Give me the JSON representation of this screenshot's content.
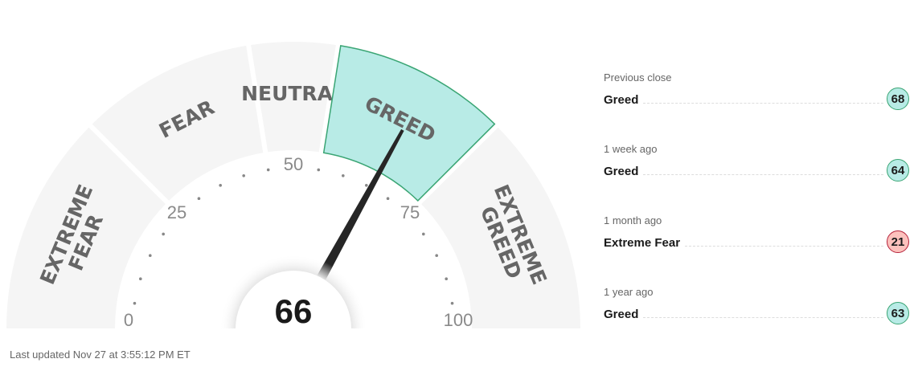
{
  "gauge": {
    "value": 66,
    "value_label": "66",
    "min": 0,
    "max": 100,
    "active_segment": 3,
    "segments": [
      {
        "lines": [
          "EXTREME",
          "FEAR"
        ],
        "from": 0,
        "to": 25
      },
      {
        "lines": [
          "FEAR"
        ],
        "from": 25,
        "to": 45
      },
      {
        "lines": [
          "NEUTRAL"
        ],
        "from": 45,
        "to": 55
      },
      {
        "lines": [
          "GREED"
        ],
        "from": 55,
        "to": 75
      },
      {
        "lines": [
          "EXTREME",
          "GREED"
        ],
        "from": 75,
        "to": 100
      }
    ],
    "tick_labels": [
      "0",
      "25",
      "50",
      "75",
      "100"
    ],
    "colors": {
      "segment": "#f5f5f5",
      "active_fill": "#b8ebe6",
      "active_stroke": "#3aa574",
      "needle": "#262626",
      "label": "#666666"
    }
  },
  "history": [
    {
      "label": "Previous close",
      "rating": "Greed",
      "value": "68",
      "fill": "#b8ebe6",
      "border": "#3aa574"
    },
    {
      "label": "1 week ago",
      "rating": "Greed",
      "value": "64",
      "fill": "#b8ebe6",
      "border": "#3aa574"
    },
    {
      "label": "1 month ago",
      "rating": "Extreme Fear",
      "value": "21",
      "fill": "#fcc1bd",
      "border": "#b5213a"
    },
    {
      "label": "1 year ago",
      "rating": "Greed",
      "value": "63",
      "fill": "#b8ebe6",
      "border": "#3aa574"
    }
  ],
  "footer": {
    "last_updated": "Last updated Nov 27 at 3:55:12 PM ET"
  }
}
